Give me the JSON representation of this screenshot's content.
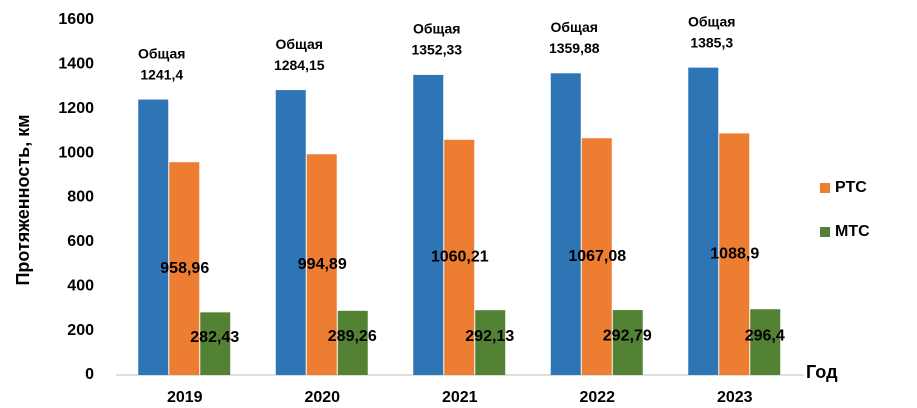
{
  "chart_data": {
    "type": "bar",
    "categories": [
      "2019",
      "2020",
      "2021",
      "2022",
      "2023"
    ],
    "series": [
      {
        "name": "Общая",
        "color": "#2e75b6",
        "values": [
          1241.4,
          1284.15,
          1352.33,
          1359.88,
          1385.3
        ],
        "value_labels": [
          "1241,4",
          "1284,15",
          "1352,33",
          "1359,88",
          "1385,3"
        ]
      },
      {
        "name": "РТС",
        "color": "#ed7d31",
        "values": [
          958.96,
          994.89,
          1060.21,
          1067.08,
          1088.9
        ],
        "value_labels": [
          "958,96",
          "994,89",
          "1060,21",
          "1067,08",
          "1088,9"
        ]
      },
      {
        "name": "МТС",
        "color": "#548235",
        "values": [
          282.43,
          289.26,
          292.13,
          292.79,
          296.4
        ],
        "value_labels": [
          "282,43",
          "289,26",
          "292,13",
          "292,79",
          "296,4"
        ]
      }
    ],
    "xlabel": "Год",
    "ylabel": "Протяженность, км",
    "ylim": [
      0,
      1600
    ],
    "yticks": [
      0,
      200,
      400,
      600,
      800,
      1000,
      1200,
      1400,
      1600
    ],
    "grid": false,
    "legend": "right"
  }
}
